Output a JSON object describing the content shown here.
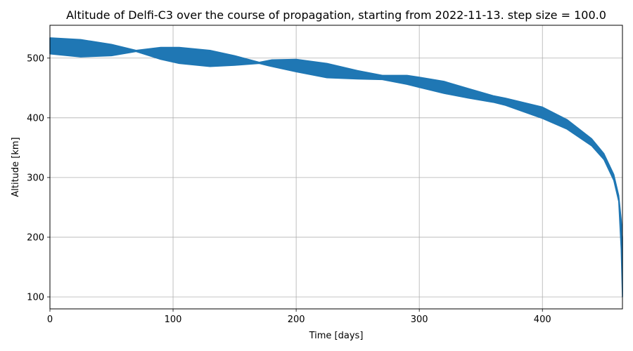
{
  "chart_data": {
    "type": "area",
    "title": "Altitude of Delfi-C3 over the course of propagation, starting from 2022-11-13. step size = 100.0",
    "xlabel": "Time [days]",
    "ylabel": "Altitude [km]",
    "xlim": [
      0,
      465
    ],
    "ylim": [
      80,
      555
    ],
    "xticks": [
      0,
      100,
      200,
      300,
      400
    ],
    "yticks": [
      100,
      200,
      300,
      400,
      500
    ],
    "grid": true,
    "color": "#1f77b4",
    "series": [
      {
        "x": [
          0,
          25,
          50,
          70,
          90,
          105,
          130,
          150,
          170,
          180,
          200,
          225,
          250,
          270,
          290,
          300,
          320,
          340,
          360,
          370,
          400,
          420,
          440,
          450,
          458,
          462,
          464,
          465
        ],
        "upper": [
          534,
          531,
          523,
          513,
          518,
          518,
          513,
          504,
          493,
          497,
          498,
          491,
          479,
          471,
          471,
          468,
          461,
          449,
          437,
          433,
          418,
          397,
          365,
          340,
          305,
          270,
          230,
          200
        ],
        "lower": [
          507,
          502,
          504,
          511,
          498,
          491,
          486,
          488,
          491,
          486,
          477,
          467,
          465,
          464,
          456,
          451,
          441,
          433,
          426,
          421,
          399,
          381,
          353,
          330,
          295,
          260,
          180,
          100
        ]
      }
    ]
  }
}
